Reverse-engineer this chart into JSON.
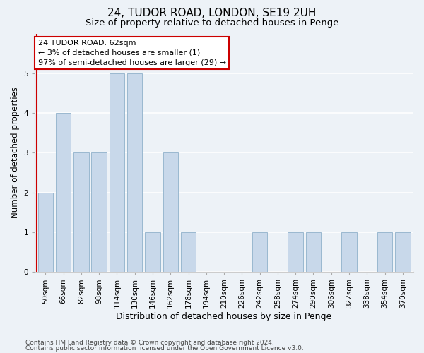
{
  "title1": "24, TUDOR ROAD, LONDON, SE19 2UH",
  "title2": "Size of property relative to detached houses in Penge",
  "xlabel": "Distribution of detached houses by size in Penge",
  "ylabel": "Number of detached properties",
  "categories": [
    "50sqm",
    "66sqm",
    "82sqm",
    "98sqm",
    "114sqm",
    "130sqm",
    "146sqm",
    "162sqm",
    "178sqm",
    "194sqm",
    "210sqm",
    "226sqm",
    "242sqm",
    "258sqm",
    "274sqm",
    "290sqm",
    "306sqm",
    "322sqm",
    "338sqm",
    "354sqm",
    "370sqm"
  ],
  "values": [
    2,
    4,
    3,
    3,
    5,
    5,
    1,
    3,
    1,
    0,
    0,
    0,
    1,
    0,
    1,
    1,
    0,
    1,
    0,
    1,
    1
  ],
  "bar_color": "#c8d8ea",
  "bar_edgecolor": "#9ab8cf",
  "annotation_text": "24 TUDOR ROAD: 62sqm\n← 3% of detached houses are smaller (1)\n97% of semi-detached houses are larger (29) →",
  "annotation_box_facecolor": "#ffffff",
  "annotation_box_edgecolor": "#cc0000",
  "subject_line_color": "#cc0000",
  "ylim_max": 6,
  "yticks": [
    0,
    1,
    2,
    3,
    4,
    5,
    6
  ],
  "footer1": "Contains HM Land Registry data © Crown copyright and database right 2024.",
  "footer2": "Contains public sector information licensed under the Open Government Licence v3.0.",
  "bg_color": "#edf2f7",
  "grid_color": "#ffffff",
  "title1_fontsize": 11,
  "title2_fontsize": 9.5,
  "xlabel_fontsize": 9,
  "ylabel_fontsize": 8.5,
  "tick_fontsize": 7.5,
  "annot_fontsize": 8,
  "footer_fontsize": 6.5
}
